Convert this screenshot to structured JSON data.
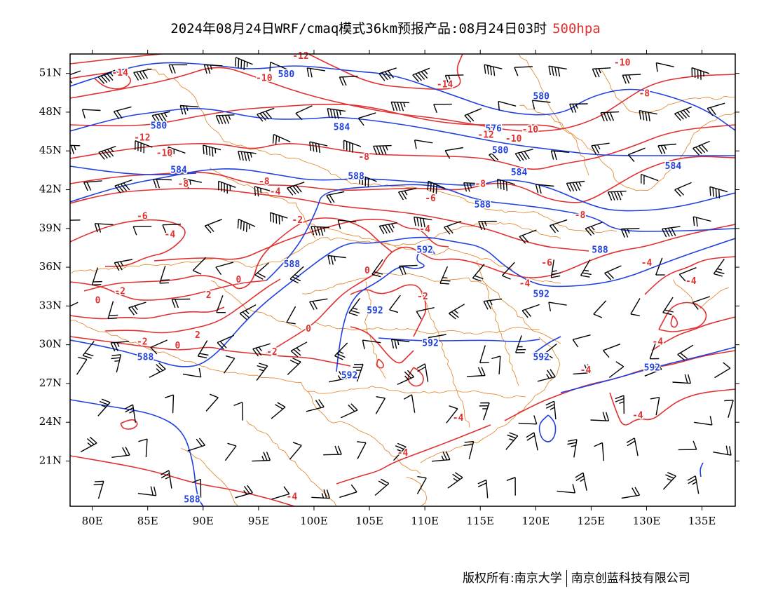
{
  "header": {
    "title": "2024年08月24日WRF/cmaq模式36km预报产品:08月24日03时",
    "level": "500hpa",
    "level_color": "#e03030"
  },
  "map": {
    "lon_range": [
      78,
      138
    ],
    "lat_range": [
      17.5,
      52.5
    ],
    "lat_ticks": [
      "51N",
      "48N",
      "45N",
      "42N",
      "39N",
      "36N",
      "33N",
      "30N",
      "27N",
      "24N",
      "21N"
    ],
    "lon_ticks": [
      "80E",
      "85E",
      "90E",
      "95E",
      "100E",
      "105E",
      "110E",
      "115E",
      "120E",
      "125E",
      "130E",
      "135E"
    ],
    "colors": {
      "geopotential": "#2040e0",
      "temperature": "#e03030",
      "boundary": "#e08020",
      "wind": "#000000"
    }
  },
  "contour_labels": {
    "geopotential": [
      {
        "text": "580",
        "lon": 97.5,
        "lat": 50.9
      },
      {
        "text": "580",
        "lon": 120.5,
        "lat": 49.2
      },
      {
        "text": "580",
        "lon": 86.0,
        "lat": 46.9
      },
      {
        "text": "584",
        "lon": 102.5,
        "lat": 46.8
      },
      {
        "text": "576",
        "lon": 116.2,
        "lat": 46.7
      },
      {
        "text": "580",
        "lon": 116.8,
        "lat": 45.0
      },
      {
        "text": "584",
        "lon": 87.8,
        "lat": 43.5
      },
      {
        "text": "588",
        "lon": 103.8,
        "lat": 43.0
      },
      {
        "text": "584",
        "lon": 118.5,
        "lat": 43.3
      },
      {
        "text": "584",
        "lon": 132.4,
        "lat": 43.8
      },
      {
        "text": "588",
        "lon": 115.2,
        "lat": 40.8
      },
      {
        "text": "592",
        "lon": 110.0,
        "lat": 37.3
      },
      {
        "text": "588",
        "lon": 125.8,
        "lat": 37.3
      },
      {
        "text": "588",
        "lon": 98.0,
        "lat": 36.2
      },
      {
        "text": "592",
        "lon": 120.5,
        "lat": 33.9
      },
      {
        "text": "592",
        "lon": 105.5,
        "lat": 32.6
      },
      {
        "text": "592",
        "lon": 110.5,
        "lat": 30.1
      },
      {
        "text": "592",
        "lon": 120.5,
        "lat": 29.0
      },
      {
        "text": "592",
        "lon": 130.5,
        "lat": 28.2
      },
      {
        "text": "592",
        "lon": 103.2,
        "lat": 27.6
      },
      {
        "text": "588",
        "lon": 84.8,
        "lat": 29.0
      },
      {
        "text": "588",
        "lon": 89.0,
        "lat": 18.0
      }
    ],
    "temperature": [
      {
        "text": "-12",
        "lon": 98.8,
        "lat": 52.3
      },
      {
        "text": "-14",
        "lon": 82.5,
        "lat": 51.0
      },
      {
        "text": "-10",
        "lon": 95.5,
        "lat": 50.6
      },
      {
        "text": "-14",
        "lon": 111.8,
        "lat": 50.1
      },
      {
        "text": "-10",
        "lon": 127.8,
        "lat": 51.8
      },
      {
        "text": "-8",
        "lon": 129.8,
        "lat": 49.4
      },
      {
        "text": "-12",
        "lon": 84.5,
        "lat": 46.0
      },
      {
        "text": "-12",
        "lon": 115.5,
        "lat": 46.2
      },
      {
        "text": "-10",
        "lon": 119.5,
        "lat": 46.6
      },
      {
        "text": "-10",
        "lon": 118.0,
        "lat": 45.9
      },
      {
        "text": "-10",
        "lon": 86.5,
        "lat": 44.8
      },
      {
        "text": "-8",
        "lon": 104.5,
        "lat": 44.5
      },
      {
        "text": "-8",
        "lon": 88.2,
        "lat": 42.4
      },
      {
        "text": "-8",
        "lon": 95.5,
        "lat": 42.6
      },
      {
        "text": "-8",
        "lon": 115.0,
        "lat": 42.4
      },
      {
        "text": "-4",
        "lon": 96.5,
        "lat": 41.8
      },
      {
        "text": "-6",
        "lon": 110.5,
        "lat": 41.3
      },
      {
        "text": "-6",
        "lon": 84.5,
        "lat": 39.9
      },
      {
        "text": "-2",
        "lon": 98.5,
        "lat": 39.6
      },
      {
        "text": "-8",
        "lon": 124.0,
        "lat": 40.0
      },
      {
        "text": "-4",
        "lon": 87.0,
        "lat": 38.5
      },
      {
        "text": "-4",
        "lon": 110.0,
        "lat": 38.9
      },
      {
        "text": "-6",
        "lon": 121.0,
        "lat": 36.3
      },
      {
        "text": "-4",
        "lon": 130.0,
        "lat": 36.3
      },
      {
        "text": "0",
        "lon": 104.8,
        "lat": 35.7
      },
      {
        "text": "0",
        "lon": 93.2,
        "lat": 35.0
      },
      {
        "text": "-4",
        "lon": 119.0,
        "lat": 34.7
      },
      {
        "text": "-4",
        "lon": 134.0,
        "lat": 34.9
      },
      {
        "text": "-2",
        "lon": 82.5,
        "lat": 34.1
      },
      {
        "text": "0",
        "lon": 80.5,
        "lat": 33.4
      },
      {
        "text": "2",
        "lon": 90.5,
        "lat": 33.8
      },
      {
        "text": "-2",
        "lon": 109.8,
        "lat": 33.7
      },
      {
        "text": "2",
        "lon": 89.5,
        "lat": 30.7
      },
      {
        "text": "0",
        "lon": 99.5,
        "lat": 31.2
      },
      {
        "text": "-2",
        "lon": 84.5,
        "lat": 30.2
      },
      {
        "text": "0",
        "lon": 87.7,
        "lat": 29.9
      },
      {
        "text": "-2",
        "lon": 96.2,
        "lat": 29.4
      },
      {
        "text": "-4",
        "lon": 124.5,
        "lat": 28.0
      },
      {
        "text": "-4",
        "lon": 131.0,
        "lat": 30.2
      },
      {
        "text": "-4",
        "lon": 113.0,
        "lat": 24.3
      },
      {
        "text": "-4",
        "lon": 129.2,
        "lat": 24.5
      },
      {
        "text": "-4",
        "lon": 108.0,
        "lat": 21.6
      },
      {
        "text": "-4",
        "lon": 98.0,
        "lat": 18.2
      }
    ]
  },
  "footer": {
    "left": "版权所有:南京大学",
    "right": "南京创蓝科技有限公司"
  }
}
